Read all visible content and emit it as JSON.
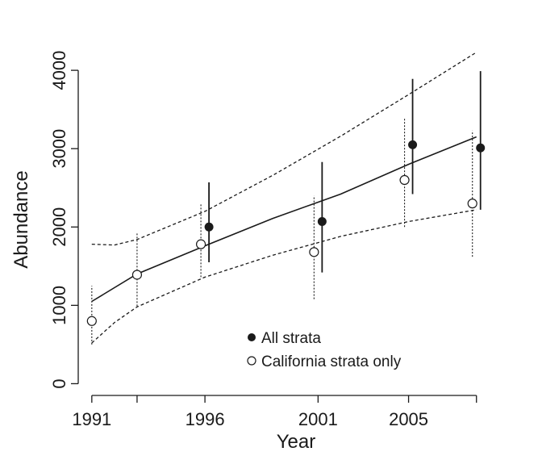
{
  "chart_data": {
    "type": "scatter",
    "title": "",
    "xlabel": "Year",
    "ylabel": "Abundance",
    "xlim": [
      1990.4,
      2009.4
    ],
    "ylim": [
      -150,
      4300
    ],
    "x_ticks": [
      1991,
      1993,
      1996,
      2001,
      2005,
      2008
    ],
    "x_tick_labels": [
      "1991",
      "",
      "1996",
      "2001",
      "2005",
      ""
    ],
    "y_ticks": [
      0,
      1000,
      2000,
      3000,
      4000
    ],
    "y_tick_labels": [
      "0",
      "1000",
      "2000",
      "3000",
      "4000"
    ],
    "grid": false,
    "legend_position": "lower-right",
    "series": [
      {
        "name": "All strata",
        "marker": "filled-circle",
        "points": [
          {
            "x": 1996,
            "y": 2000,
            "lo": 1550,
            "hi": 2570
          },
          {
            "x": 2001,
            "y": 2070,
            "lo": 1420,
            "hi": 2830
          },
          {
            "x": 2005,
            "y": 3050,
            "lo": 2420,
            "hi": 3890
          },
          {
            "x": 2008,
            "y": 3010,
            "lo": 2220,
            "hi": 3990
          }
        ]
      },
      {
        "name": "California strata only",
        "marker": "open-circle",
        "points": [
          {
            "x": 1991,
            "y": 800,
            "lo": 500,
            "hi": 1250
          },
          {
            "x": 1993,
            "y": 1390,
            "lo": 990,
            "hi": 1930
          },
          {
            "x": 1996,
            "y": 1780,
            "lo": 1360,
            "hi": 2290
          },
          {
            "x": 2001,
            "y": 1680,
            "lo": 1080,
            "hi": 2400
          },
          {
            "x": 2005,
            "y": 2600,
            "lo": 2000,
            "hi": 3380
          },
          {
            "x": 2008,
            "y": 2300,
            "lo": 1620,
            "hi": 3230
          }
        ]
      }
    ],
    "trend": {
      "line_style": "solid",
      "points": [
        {
          "x": 1991,
          "y": 1050
        },
        {
          "x": 1993,
          "y": 1400
        },
        {
          "x": 1996,
          "y": 1760
        },
        {
          "x": 1999,
          "y": 2110
        },
        {
          "x": 2002,
          "y": 2420
        },
        {
          "x": 2005,
          "y": 2800
        },
        {
          "x": 2008,
          "y": 3150
        }
      ]
    },
    "trend_upper": {
      "line_style": "dashed",
      "points": [
        {
          "x": 1991,
          "y": 1780
        },
        {
          "x": 1992,
          "y": 1770
        },
        {
          "x": 1993,
          "y": 1840
        },
        {
          "x": 1996,
          "y": 2200
        },
        {
          "x": 1999,
          "y": 2660
        },
        {
          "x": 2002,
          "y": 3160
        },
        {
          "x": 2005,
          "y": 3690
        },
        {
          "x": 2008,
          "y": 4230
        }
      ]
    },
    "trend_lower": {
      "line_style": "dashed",
      "points": [
        {
          "x": 1991,
          "y": 520
        },
        {
          "x": 1992,
          "y": 780
        },
        {
          "x": 1993,
          "y": 980
        },
        {
          "x": 1996,
          "y": 1360
        },
        {
          "x": 1999,
          "y": 1640
        },
        {
          "x": 2002,
          "y": 1880
        },
        {
          "x": 2005,
          "y": 2070
        },
        {
          "x": 2008,
          "y": 2220
        }
      ]
    },
    "colors": {
      "foreground": "#1a1a1a",
      "background": "#ffffff"
    }
  }
}
